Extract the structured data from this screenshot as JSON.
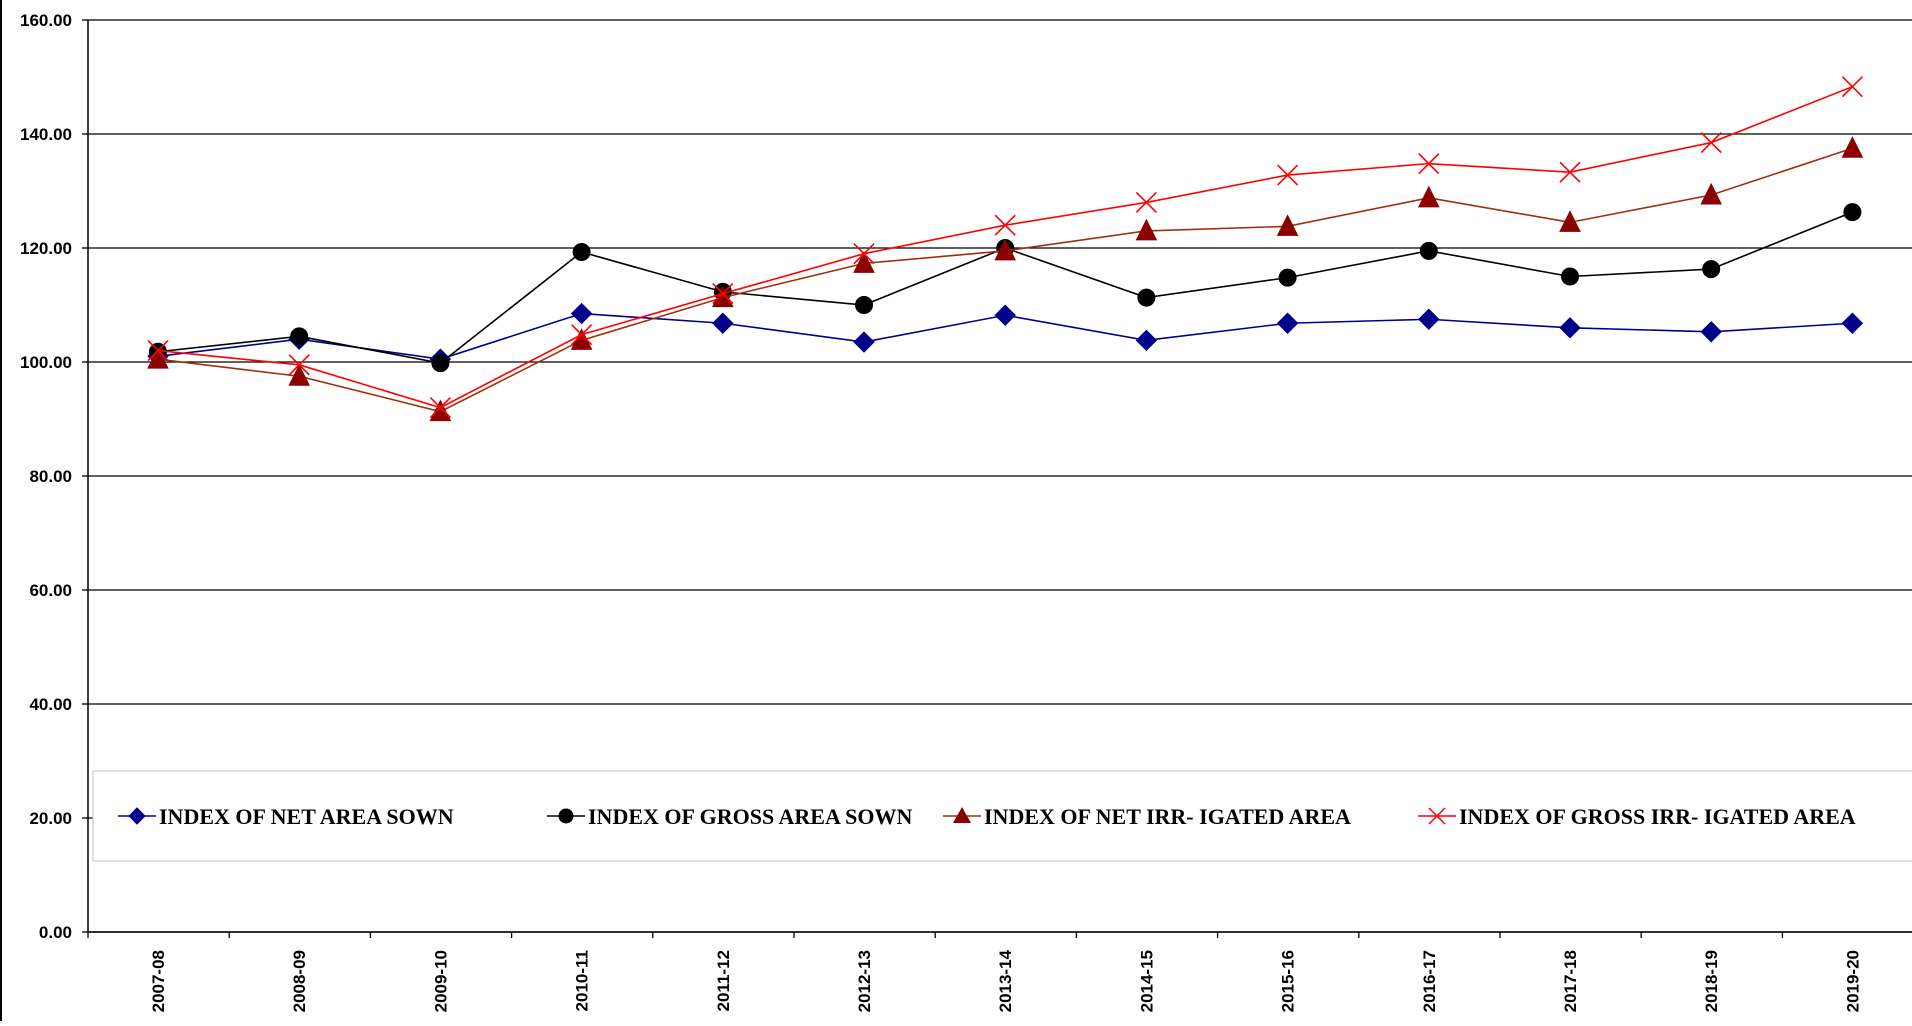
{
  "chart_data": {
    "type": "line",
    "categories": [
      "2007-08",
      "2008-09",
      "2009-10",
      "2010-11",
      "2011-12",
      "2012-13",
      "2013-14",
      "2014-15",
      "2015-16",
      "2016-17",
      "2017-18",
      "2018-19",
      "2019-20"
    ],
    "ylim": [
      0,
      160
    ],
    "yticks": [
      "0.00",
      "20.00",
      "40.00",
      "60.00",
      "80.00",
      "100.00",
      "120.00",
      "140.00",
      "160.00"
    ],
    "grid": true,
    "legend_position": "bottom (inside plot)",
    "series": [
      {
        "name": "INDEX OF NET AREA SOWN",
        "color": "#00008b",
        "marker": "diamond",
        "values": [
          101.0,
          104.0,
          100.5,
          108.5,
          106.8,
          103.5,
          108.2,
          103.8,
          106.8,
          107.5,
          106.0,
          105.3,
          106.8
        ]
      },
      {
        "name": "INDEX OF GROSS AREA SOWN",
        "color": "#000000",
        "marker": "circle",
        "values": [
          101.8,
          104.5,
          99.8,
          119.3,
          112.3,
          110.0,
          120.0,
          111.3,
          114.8,
          119.5,
          115.0,
          116.3,
          126.3
        ]
      },
      {
        "name": "INDEX OF NET IRR- IGATED AREA",
        "color": "#a0300a",
        "marker": "triangle",
        "values": [
          100.5,
          97.5,
          91.3,
          103.8,
          111.3,
          117.3,
          119.5,
          123.0,
          123.8,
          128.8,
          124.5,
          129.3,
          137.5
        ]
      },
      {
        "name": "INDEX OF GROSS IRR- IGATED AREA",
        "color": "#ff0000",
        "marker": "x",
        "values": [
          102.0,
          99.5,
          92.0,
          104.8,
          112.0,
          119.0,
          124.0,
          128.0,
          132.8,
          134.8,
          133.3,
          138.5,
          148.3
        ]
      }
    ]
  },
  "marker_fill": {
    "diamond": "#00008b",
    "circle": "#000000",
    "triangle": "#8b0000",
    "x": "none"
  }
}
